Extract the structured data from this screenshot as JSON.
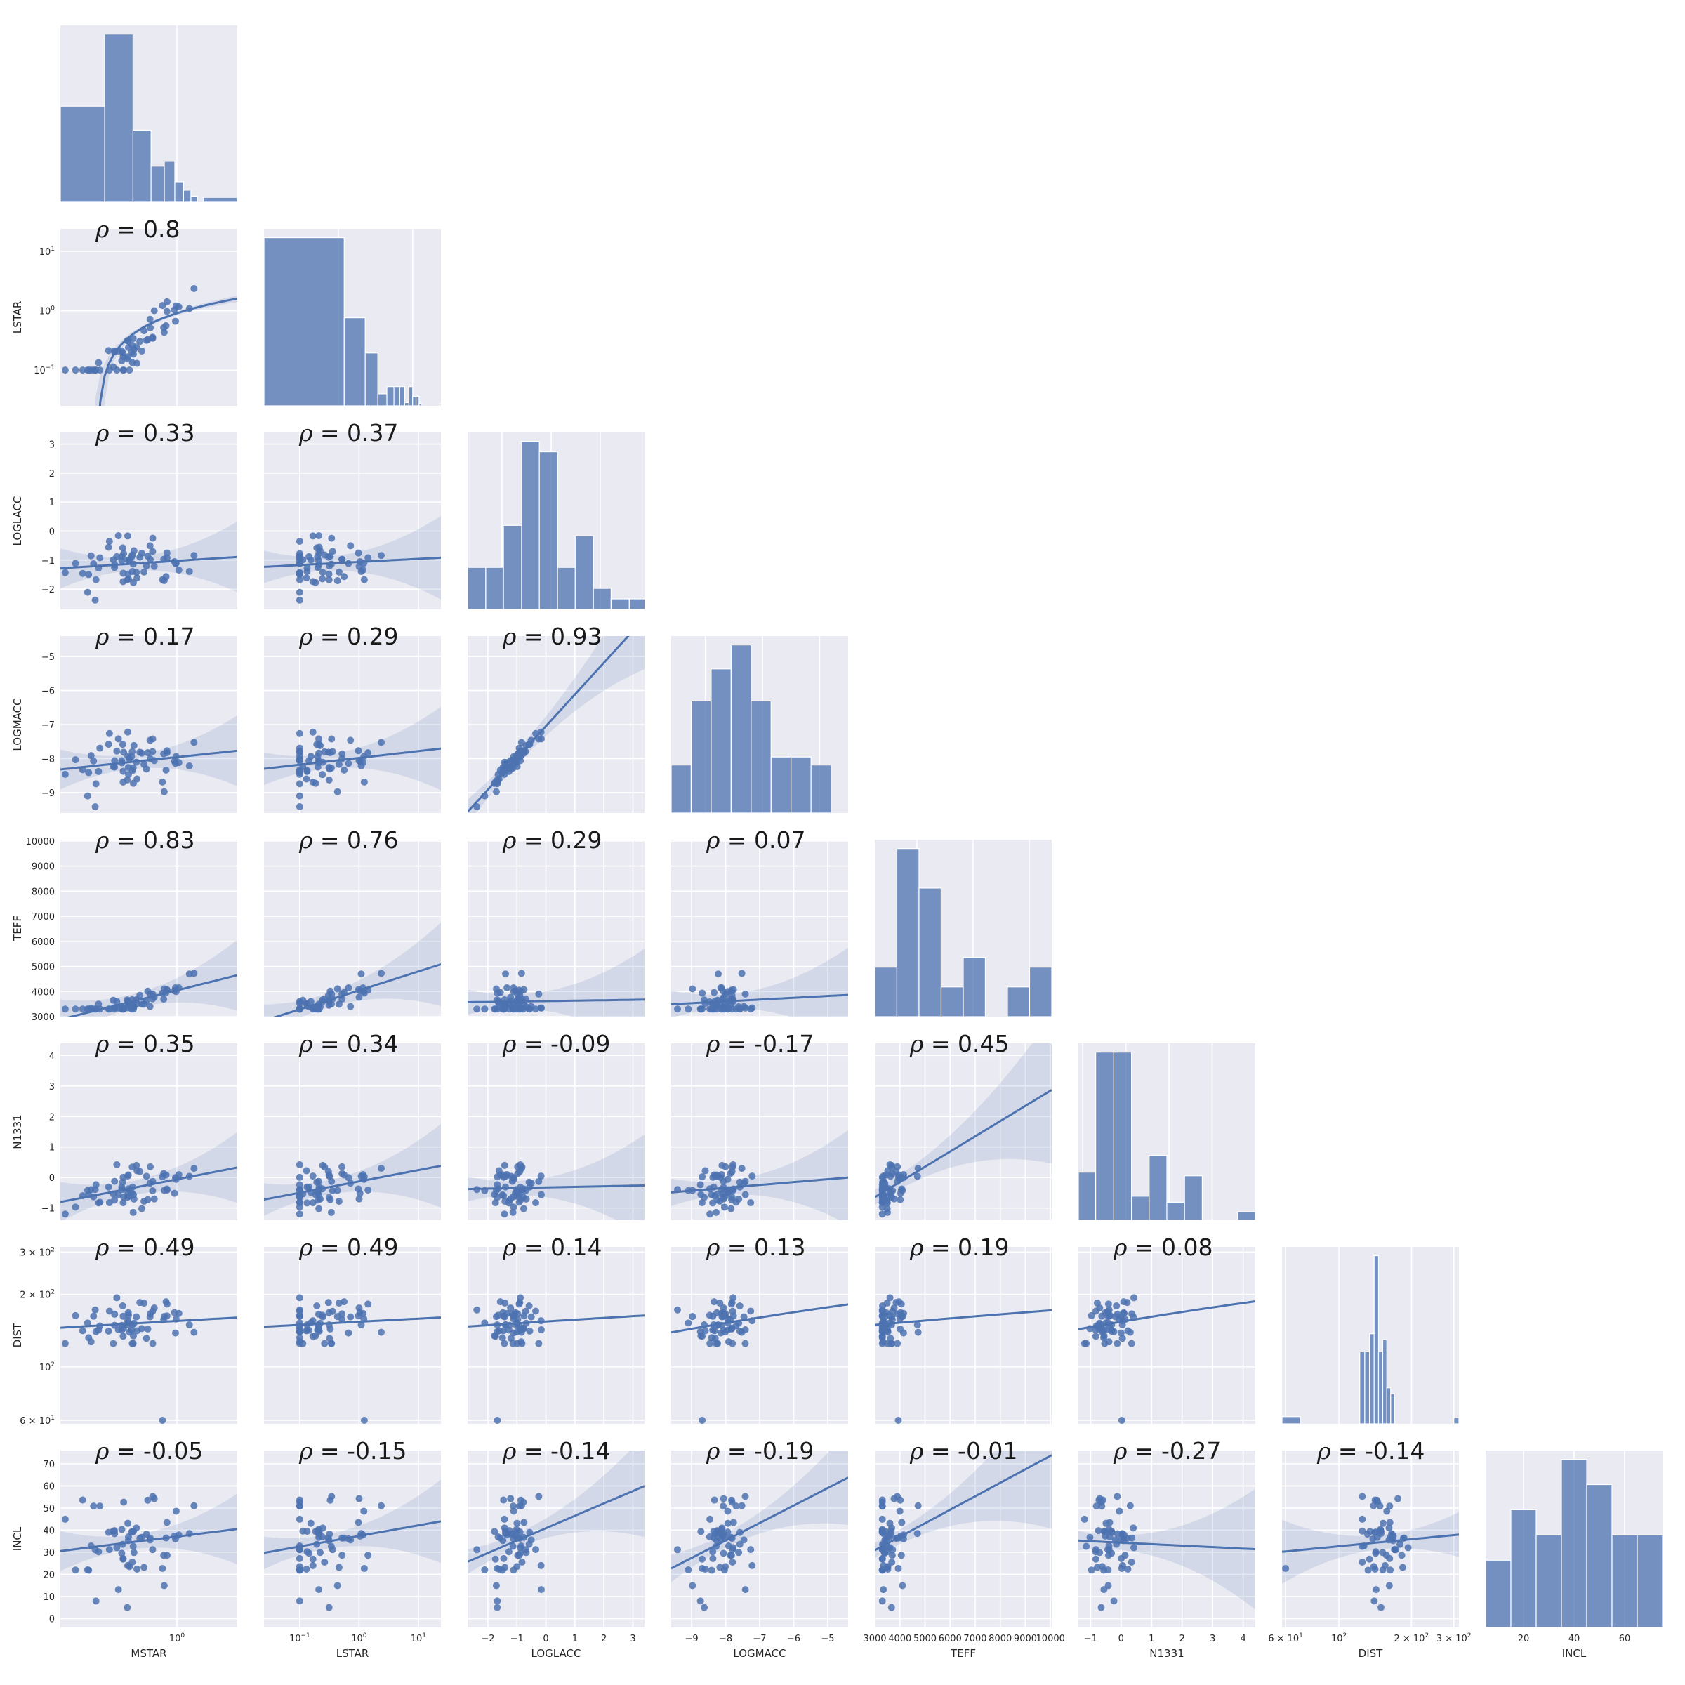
{
  "rho_symbol": "ρ",
  "colors": {
    "panel": "#eaeaf2",
    "marker": "#4c72b0",
    "grid": "#ffffff"
  },
  "chart_data": {
    "type": "pairplot",
    "grid": true,
    "variables": [
      {
        "name": "MSTAR",
        "scale": "log",
        "lim": [
          0.1,
          3.3
        ],
        "ticks": [
          {
            "v": 1,
            "b": "10",
            "e": "0"
          }
        ]
      },
      {
        "name": "LSTAR",
        "scale": "log",
        "lim": [
          0.025,
          24
        ],
        "ticks": [
          {
            "v": 0.1,
            "b": "10",
            "e": "−1"
          },
          {
            "v": 1,
            "b": "10",
            "e": "0"
          },
          {
            "v": 10,
            "b": "10",
            "e": "1"
          }
        ]
      },
      {
        "name": "LOGLACC",
        "scale": "linear",
        "lim": [
          -2.7,
          3.4
        ],
        "ticks": [
          {
            "v": -2,
            "t": "−2"
          },
          {
            "v": -1,
            "t": "−1"
          },
          {
            "v": 0,
            "t": "0"
          },
          {
            "v": 1,
            "t": "1"
          },
          {
            "v": 2,
            "t": "2"
          },
          {
            "v": 3,
            "t": "3"
          }
        ]
      },
      {
        "name": "LOGMACC",
        "scale": "linear",
        "lim": [
          -9.6,
          -4.4
        ],
        "ticks": [
          {
            "v": -9,
            "t": "−9"
          },
          {
            "v": -8,
            "t": "−8"
          },
          {
            "v": -7,
            "t": "−7"
          },
          {
            "v": -6,
            "t": "−6"
          },
          {
            "v": -5,
            "t": "−5"
          }
        ]
      },
      {
        "name": "TEFF",
        "scale": "linear",
        "lim": [
          3000,
          10050
        ],
        "ticks": [
          {
            "v": 3000,
            "t": "3000"
          },
          {
            "v": 4000,
            "t": "4000"
          },
          {
            "v": 5000,
            "t": "5000"
          },
          {
            "v": 6000,
            "t": "6000"
          },
          {
            "v": 7000,
            "t": "7000"
          },
          {
            "v": 8000,
            "t": "8000"
          },
          {
            "v": 9000,
            "t": "9000"
          },
          {
            "v": 10000,
            "t": "10000"
          }
        ]
      },
      {
        "name": "N1331",
        "scale": "linear",
        "lim": [
          -1.4,
          4.4
        ],
        "ticks": [
          {
            "v": -1,
            "t": "−1"
          },
          {
            "v": 0,
            "t": "0"
          },
          {
            "v": 1,
            "t": "1"
          },
          {
            "v": 2,
            "t": "2"
          },
          {
            "v": 3,
            "t": "3"
          },
          {
            "v": 4,
            "t": "4"
          }
        ]
      },
      {
        "name": "DIST",
        "scale": "log",
        "lim": [
          58,
          315
        ],
        "ticks": [
          {
            "v": 60,
            "b": "6 × 10",
            "e": "1"
          },
          {
            "v": 100,
            "b": "10",
            "e": "2"
          },
          {
            "v": 200,
            "b": "2 × 10",
            "e": "2"
          },
          {
            "v": 300,
            "b": "3 × 10",
            "e": "2"
          }
        ]
      },
      {
        "name": "INCL",
        "scale": "linear",
        "lim": [
          -4,
          76
        ],
        "ticks": [
          {
            "v": 0,
            "t": "0"
          },
          {
            "v": 10,
            "t": "10"
          },
          {
            "v": 20,
            "t": "20"
          },
          {
            "v": 30,
            "t": "30"
          },
          {
            "v": 40,
            "t": "40"
          },
          {
            "v": 50,
            "t": "50"
          },
          {
            "v": 60,
            "t": "60"
          },
          {
            "v": 70,
            "t": "70"
          }
        ]
      }
    ],
    "diag_xlims": [
      [
        0.1,
        3.3
      ],
      [
        0.1,
        24
      ],
      [
        -2.7,
        0.9
      ],
      [
        -9.6,
        -6.5
      ],
      [
        3250,
        6400
      ],
      [
        -1.1,
        3.0
      ],
      [
        58,
        315
      ],
      [
        5,
        75
      ]
    ],
    "diag_x_ticks": [
      [
        {
          "v": 1,
          "b": "10",
          "e": "0"
        }
      ],
      [
        {
          "v": 1,
          "b": "10",
          "e": "0"
        },
        {
          "v": 10,
          "b": "10",
          "e": "1"
        }
      ],
      [
        {
          "v": -2,
          "t": "−2"
        },
        {
          "v": -1,
          "t": "−1"
        },
        {
          "v": 0,
          "t": "0"
        }
      ],
      [
        {
          "v": -9,
          "t": "−9"
        },
        {
          "v": -8,
          "t": "−8"
        },
        {
          "v": -7,
          "t": "−7"
        }
      ],
      [
        {
          "v": 4000,
          "t": "4000"
        },
        {
          "v": 5000,
          "t": "5000"
        },
        {
          "v": 6000,
          "t": "6000"
        }
      ],
      [
        {
          "v": -1,
          "t": "−1"
        },
        {
          "v": 0,
          "t": "0"
        },
        {
          "v": 1,
          "t": "1"
        },
        {
          "v": 2,
          "t": "2"
        }
      ],
      [
        {
          "v": 60,
          "b": "6 × 10",
          "e": "1"
        },
        {
          "v": 100,
          "b": "10",
          "e": "2"
        },
        {
          "v": 200,
          "b": "2 × 10",
          "e": "2"
        },
        {
          "v": 300,
          "b": "3 × 10",
          "e": "2"
        }
      ],
      [
        {
          "v": 20,
          "t": "20"
        },
        {
          "v": 40,
          "t": "40"
        },
        {
          "v": 60,
          "t": "60"
        }
      ]
    ],
    "histograms": [
      {
        "var": "MSTAR",
        "edges": [
          0.1,
          0.24,
          0.42,
          0.6,
          0.78,
          0.96,
          1.14,
          1.32,
          1.5,
          1.68,
          3.3
        ],
        "heights": [
          8,
          14,
          6,
          3,
          3.4,
          1.7,
          1,
          0.5,
          0,
          0.4
        ]
      },
      {
        "var": "LSTAR",
        "edges": [
          0.1,
          1.2,
          2.3,
          3.4,
          4.5,
          5.6,
          6.7,
          7.8,
          8.9,
          10,
          11.1,
          12.2,
          13.3,
          14.4,
          15.5,
          16.6,
          17.7,
          18.8,
          19.9,
          21,
          22.1,
          23.2,
          24
        ],
        "heights": [
          21,
          11,
          6.6,
          1.5,
          2.4,
          2.4,
          2.4,
          0.4,
          2.4,
          1.2,
          1.2,
          0.3,
          0,
          0,
          0,
          0,
          0,
          0,
          0,
          0,
          0,
          0.3
        ]
      },
      {
        "var": "LOGLACC",
        "edges": [
          -2.7,
          -2.33,
          -1.97,
          -1.6,
          -1.24,
          -0.87,
          -0.51,
          -0.14,
          0.22,
          0.59,
          0.95
        ],
        "heights": [
          2,
          2,
          4,
          8,
          7.5,
          2,
          3.5,
          1,
          0.5,
          0.5
        ]
      },
      {
        "var": "LOGMACC",
        "edges": [
          -9.6,
          -9.25,
          -8.9,
          -8.55,
          -8.2,
          -7.85,
          -7.5,
          -7.15,
          -6.8,
          -6.5
        ],
        "heights": [
          3,
          7,
          9,
          10.5,
          7,
          3.5,
          3.5,
          3,
          0
        ]
      },
      {
        "var": "TEFF",
        "edges": [
          3250,
          3643,
          4037,
          4431,
          4825,
          5218,
          5612,
          6006,
          6400
        ],
        "heights": [
          5,
          17,
          13,
          3,
          6,
          0,
          3,
          5
        ]
      },
      {
        "var": "N1331",
        "edges": [
          -1.1,
          -0.7,
          -0.28,
          0.13,
          0.54,
          0.95,
          1.36,
          1.77,
          2.18,
          2.59,
          3.0
        ],
        "heights": [
          4,
          14,
          14,
          2,
          5.4,
          1.5,
          3.7,
          0,
          0,
          0.7
        ]
      },
      {
        "var": "DIST",
        "edges": [
          58,
          69,
          82,
          97,
          115,
          122,
          128,
          134,
          140,
          146,
          152,
          158,
          164,
          170,
          176,
          182,
          190,
          220,
          300,
          315
        ],
        "heights": [
          1.2,
          0,
          0,
          0,
          0,
          12,
          12,
          15,
          28,
          12,
          14,
          6,
          5,
          0,
          0,
          0,
          0,
          0,
          1
        ]
      },
      {
        "var": "INCL",
        "edges": [
          5,
          15,
          25,
          35,
          45,
          55,
          65,
          75
        ],
        "heights": [
          4,
          7,
          5.5,
          10,
          8.5,
          5.5,
          5.5
        ]
      }
    ],
    "pairs": [
      {
        "row": 1,
        "col": 0,
        "rho": "0.8"
      },
      {
        "row": 2,
        "col": 0,
        "rho": "0.33"
      },
      {
        "row": 2,
        "col": 1,
        "rho": "0.37"
      },
      {
        "row": 3,
        "col": 0,
        "rho": "0.17"
      },
      {
        "row": 3,
        "col": 1,
        "rho": "0.29"
      },
      {
        "row": 3,
        "col": 2,
        "rho": "0.93"
      },
      {
        "row": 4,
        "col": 0,
        "rho": "0.83"
      },
      {
        "row": 4,
        "col": 1,
        "rho": "0.76"
      },
      {
        "row": 4,
        "col": 2,
        "rho": "0.29"
      },
      {
        "row": 4,
        "col": 3,
        "rho": "0.07"
      },
      {
        "row": 5,
        "col": 0,
        "rho": "0.35"
      },
      {
        "row": 5,
        "col": 1,
        "rho": "0.34"
      },
      {
        "row": 5,
        "col": 2,
        "rho": "-0.09"
      },
      {
        "row": 5,
        "col": 3,
        "rho": "-0.17"
      },
      {
        "row": 5,
        "col": 4,
        "rho": "0.45"
      },
      {
        "row": 6,
        "col": 0,
        "rho": "0.49"
      },
      {
        "row": 6,
        "col": 1,
        "rho": "0.49"
      },
      {
        "row": 6,
        "col": 2,
        "rho": "0.14"
      },
      {
        "row": 6,
        "col": 3,
        "rho": "0.13"
      },
      {
        "row": 6,
        "col": 4,
        "rho": "0.19"
      },
      {
        "row": 6,
        "col": 5,
        "rho": "0.08"
      },
      {
        "row": 7,
        "col": 0,
        "rho": "-0.05"
      },
      {
        "row": 7,
        "col": 1,
        "rho": "-0.15"
      },
      {
        "row": 7,
        "col": 2,
        "rho": "-0.14"
      },
      {
        "row": 7,
        "col": 3,
        "rho": "-0.19"
      },
      {
        "row": 7,
        "col": 4,
        "rho": "-0.01"
      },
      {
        "row": 7,
        "col": 5,
        "rho": "-0.27"
      },
      {
        "row": 7,
        "col": 6,
        "rho": "-0.14"
      }
    ]
  }
}
